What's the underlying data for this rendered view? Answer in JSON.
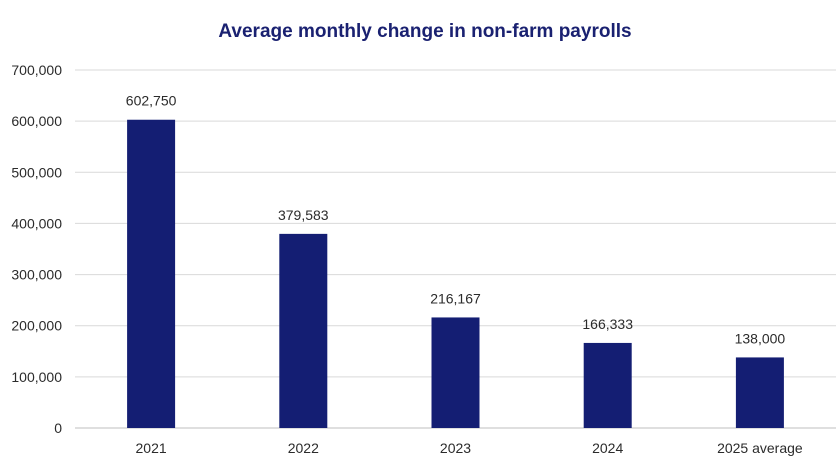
{
  "chart_data": {
    "type": "bar",
    "title": "Average monthly change in non-farm payrolls",
    "xlabel": "",
    "ylabel": "",
    "categories": [
      "2021",
      "2022",
      "2023",
      "2024",
      "2025 average"
    ],
    "values": [
      602750,
      379583,
      216167,
      166333,
      138000
    ],
    "data_labels": [
      "602,750",
      "379,583",
      "216,167",
      "166,333",
      "138,000"
    ],
    "ylim": [
      0,
      700000
    ],
    "yticks": [
      0,
      100000,
      200000,
      300000,
      400000,
      500000,
      600000,
      700000
    ],
    "ytick_labels": [
      "0",
      "100,000",
      "200,000",
      "300,000",
      "400,000",
      "500,000",
      "600,000",
      "700,000"
    ],
    "grid": true,
    "legend": "none",
    "colors": {
      "bar": "#141e73",
      "title": "#1a2171"
    }
  }
}
